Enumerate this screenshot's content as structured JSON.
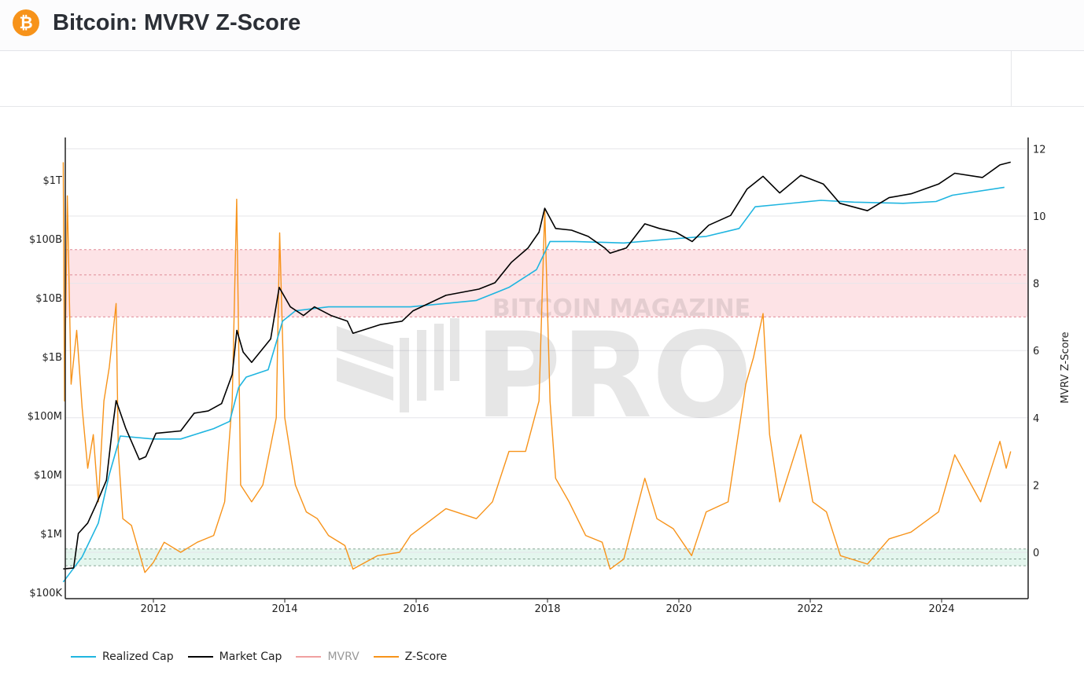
{
  "header": {
    "title": "Bitcoin: MVRV Z-Score",
    "icon": "bitcoin-icon",
    "icon_glyph": "₿"
  },
  "watermark": {
    "line1": "BITCOIN MAGAZINE",
    "line2": "PRO"
  },
  "colors": {
    "realized_cap": "#1fb5e0",
    "market_cap": "#000000",
    "mvrv": "#f0a0a0",
    "z_score": "#f7931a",
    "red_band": "#fde3e6",
    "green_band": "#e4f6ee"
  },
  "chart_data": {
    "type": "line",
    "title": "",
    "xlabel": "",
    "ylabel_left": "",
    "ylabel_right": "MVRV Z-Score",
    "x_ticks": [
      "2012",
      "2014",
      "2016",
      "2018",
      "2020",
      "2022",
      "2024"
    ],
    "x_range": [
      "2010-08-18",
      "2025-05-01"
    ],
    "y_left_scale": "log",
    "y_left_range": [
      100000,
      4000000000000
    ],
    "y_left_ticks": [
      {
        "value": 1000000000000,
        "label": "$1T"
      },
      {
        "value": 100000000000,
        "label": "$100B"
      },
      {
        "value": 10000000000,
        "label": "$10B"
      },
      {
        "value": 1000000000,
        "label": "$1B"
      },
      {
        "value": 100000000,
        "label": "$100M"
      },
      {
        "value": 10000000,
        "label": "$10M"
      },
      {
        "value": 1000000,
        "label": "$1M"
      },
      {
        "value": 100000,
        "label": "$100K"
      }
    ],
    "y_right_range": [
      -1.4,
      12.3
    ],
    "y_right_ticks": [
      0,
      2,
      4,
      6,
      8,
      10,
      12
    ],
    "bands": [
      {
        "zone": "red",
        "from": 7,
        "to": 9,
        "mid": 8.25
      },
      {
        "zone": "green",
        "from": -0.4,
        "to": 0.1,
        "mid": -0.2
      }
    ],
    "grid": true,
    "legend_placement": "bottom-left",
    "series": [
      {
        "name": "Realized Cap",
        "axis": "left",
        "visible": true,
        "points": [
          [
            "2010-08-18",
            150000
          ],
          [
            "2010-12-01",
            400000
          ],
          [
            "2011-03-01",
            1500000
          ],
          [
            "2011-05-01",
            10000000
          ],
          [
            "2011-07-01",
            45000000
          ],
          [
            "2012-01-01",
            40000000
          ],
          [
            "2012-06-01",
            40000000
          ],
          [
            "2012-12-01",
            60000000
          ],
          [
            "2013-03-01",
            80000000
          ],
          [
            "2013-04-20",
            300000000
          ],
          [
            "2013-06-01",
            450000000
          ],
          [
            "2013-10-01",
            600000000
          ],
          [
            "2013-12-20",
            4000000000
          ],
          [
            "2014-03-01",
            6000000000
          ],
          [
            "2014-09-01",
            7000000000
          ],
          [
            "2015-03-01",
            7000000000
          ],
          [
            "2015-12-01",
            7000000000
          ],
          [
            "2016-12-01",
            9000000000
          ],
          [
            "2017-06-01",
            15000000000
          ],
          [
            "2017-11-01",
            30000000000
          ],
          [
            "2018-01-15",
            90000000000
          ],
          [
            "2018-06-01",
            90000000000
          ],
          [
            "2019-03-01",
            85000000000
          ],
          [
            "2019-12-01",
            100000000000
          ],
          [
            "2020-06-01",
            110000000000
          ],
          [
            "2020-12-01",
            150000000000
          ],
          [
            "2021-03-01",
            350000000000
          ],
          [
            "2021-07-01",
            380000000000
          ],
          [
            "2022-03-01",
            450000000000
          ],
          [
            "2022-09-01",
            420000000000
          ],
          [
            "2023-06-01",
            400000000000
          ],
          [
            "2023-12-01",
            430000000000
          ],
          [
            "2024-03-01",
            550000000000
          ],
          [
            "2024-12-15",
            750000000000
          ]
        ]
      },
      {
        "name": "Market Cap",
        "axis": "left",
        "visible": true,
        "points": [
          [
            "2010-08-18",
            250000
          ],
          [
            "2010-10-15",
            260000
          ],
          [
            "2010-11-10",
            1000000
          ],
          [
            "2011-01-01",
            1500000
          ],
          [
            "2011-02-15",
            3000000
          ],
          [
            "2011-04-15",
            8000000
          ],
          [
            "2011-05-15",
            50000000
          ],
          [
            "2011-06-08",
            180000000
          ],
          [
            "2011-08-01",
            60000000
          ],
          [
            "2011-10-15",
            18000000
          ],
          [
            "2011-11-20",
            20000000
          ],
          [
            "2012-01-15",
            50000000
          ],
          [
            "2012-06-01",
            55000000
          ],
          [
            "2012-08-15",
            110000000
          ],
          [
            "2012-11-01",
            120000000
          ],
          [
            "2013-01-15",
            160000000
          ],
          [
            "2013-03-15",
            500000000
          ],
          [
            "2013-04-10",
            2800000000
          ],
          [
            "2013-05-15",
            1200000000
          ],
          [
            "2013-07-01",
            800000000
          ],
          [
            "2013-10-15",
            2000000000
          ],
          [
            "2013-12-01",
            15000000000
          ],
          [
            "2014-02-01",
            7000000000
          ],
          [
            "2014-04-15",
            5000000000
          ],
          [
            "2014-06-15",
            7000000000
          ],
          [
            "2014-09-15",
            5000000000
          ],
          [
            "2014-12-15",
            4000000000
          ],
          [
            "2015-01-15",
            2500000000
          ],
          [
            "2015-06-15",
            3500000000
          ],
          [
            "2015-10-15",
            4000000000
          ],
          [
            "2015-12-15",
            6000000000
          ],
          [
            "2016-06-15",
            11000000000
          ],
          [
            "2016-12-15",
            14000000000
          ],
          [
            "2017-03-15",
            18000000000
          ],
          [
            "2017-06-15",
            40000000000
          ],
          [
            "2017-09-15",
            70000000000
          ],
          [
            "2017-11-15",
            130000000000
          ],
          [
            "2017-12-17",
            330000000000
          ],
          [
            "2018-02-15",
            150000000000
          ],
          [
            "2018-05-15",
            140000000000
          ],
          [
            "2018-08-15",
            110000000000
          ],
          [
            "2018-11-15",
            70000000000
          ],
          [
            "2018-12-15",
            57000000000
          ],
          [
            "2019-03-15",
            70000000000
          ],
          [
            "2019-06-26",
            180000000000
          ],
          [
            "2019-09-15",
            150000000000
          ],
          [
            "2019-12-15",
            130000000000
          ],
          [
            "2020-03-15",
            90000000000
          ],
          [
            "2020-06-15",
            170000000000
          ],
          [
            "2020-10-15",
            250000000000
          ],
          [
            "2021-01-15",
            700000000000
          ],
          [
            "2021-04-14",
            1150000000000
          ],
          [
            "2021-07-15",
            600000000000
          ],
          [
            "2021-11-10",
            1200000000000
          ],
          [
            "2022-03-15",
            850000000000
          ],
          [
            "2022-06-15",
            400000000000
          ],
          [
            "2022-11-15",
            300000000000
          ],
          [
            "2023-03-15",
            500000000000
          ],
          [
            "2023-07-15",
            580000000000
          ],
          [
            "2023-12-15",
            850000000000
          ],
          [
            "2024-03-14",
            1300000000000
          ],
          [
            "2024-08-15",
            1100000000000
          ],
          [
            "2024-11-20",
            1800000000000
          ],
          [
            "2025-01-20",
            2000000000000
          ]
        ]
      },
      {
        "name": "MVRV",
        "axis": "right",
        "visible": false,
        "points": []
      },
      {
        "name": "Z-Score",
        "axis": "right",
        "visible": true,
        "points": [
          [
            "2010-08-18",
            11.6
          ],
          [
            "2010-08-25",
            4.5
          ],
          [
            "2010-09-10",
            10.6
          ],
          [
            "2010-10-01",
            5
          ],
          [
            "2010-11-01",
            6.6
          ],
          [
            "2010-12-01",
            4.3
          ],
          [
            "2011-01-01",
            2.5
          ],
          [
            "2011-02-01",
            3.5
          ],
          [
            "2011-03-01",
            1.5
          ],
          [
            "2011-04-01",
            4.5
          ],
          [
            "2011-05-01",
            5.5
          ],
          [
            "2011-06-08",
            7.4
          ],
          [
            "2011-06-20",
            3
          ],
          [
            "2011-07-15",
            1.0
          ],
          [
            "2011-09-01",
            0.8
          ],
          [
            "2011-11-15",
            -0.6
          ],
          [
            "2012-01-01",
            -0.3
          ],
          [
            "2012-03-01",
            0.3
          ],
          [
            "2012-06-01",
            0
          ],
          [
            "2012-09-01",
            0.3
          ],
          [
            "2012-12-01",
            0.5
          ],
          [
            "2013-02-01",
            1.5
          ],
          [
            "2013-03-15",
            4.5
          ],
          [
            "2013-04-09",
            10.5
          ],
          [
            "2013-05-01",
            2
          ],
          [
            "2013-07-01",
            1.5
          ],
          [
            "2013-09-01",
            2
          ],
          [
            "2013-11-15",
            4
          ],
          [
            "2013-12-04",
            9.5
          ],
          [
            "2014-01-01",
            4
          ],
          [
            "2014-03-01",
            2
          ],
          [
            "2014-05-01",
            1.2
          ],
          [
            "2014-07-01",
            1.0
          ],
          [
            "2014-09-01",
            0.5
          ],
          [
            "2014-12-01",
            0.2
          ],
          [
            "2015-01-15",
            -0.5
          ],
          [
            "2015-06-01",
            -0.1
          ],
          [
            "2015-10-01",
            0
          ],
          [
            "2015-12-01",
            0.5
          ],
          [
            "2016-06-15",
            1.3
          ],
          [
            "2016-12-01",
            1.0
          ],
          [
            "2017-03-01",
            1.5
          ],
          [
            "2017-06-01",
            3
          ],
          [
            "2017-09-01",
            3
          ],
          [
            "2017-11-15",
            4.5
          ],
          [
            "2017-12-17",
            10.2
          ],
          [
            "2018-01-15",
            4.5
          ],
          [
            "2018-02-15",
            2.2
          ],
          [
            "2018-05-01",
            1.5
          ],
          [
            "2018-08-01",
            0.5
          ],
          [
            "2018-11-01",
            0.3
          ],
          [
            "2018-12-15",
            -0.5
          ],
          [
            "2019-03-01",
            -0.2
          ],
          [
            "2019-06-26",
            2.2
          ],
          [
            "2019-09-01",
            1
          ],
          [
            "2019-12-01",
            0.7
          ],
          [
            "2020-03-12",
            -0.1
          ],
          [
            "2020-06-01",
            1.2
          ],
          [
            "2020-10-01",
            1.5
          ],
          [
            "2021-01-08",
            5
          ],
          [
            "2021-02-20",
            5.8
          ],
          [
            "2021-04-14",
            7.1
          ],
          [
            "2021-05-20",
            3.5
          ],
          [
            "2021-07-15",
            1.5
          ],
          [
            "2021-11-10",
            3.5
          ],
          [
            "2022-01-15",
            1.5
          ],
          [
            "2022-04-01",
            1.2
          ],
          [
            "2022-06-18",
            -0.1
          ],
          [
            "2022-11-15",
            -0.35
          ],
          [
            "2023-03-15",
            0.4
          ],
          [
            "2023-07-15",
            0.6
          ],
          [
            "2023-12-15",
            1.2
          ],
          [
            "2024-03-14",
            2.9
          ],
          [
            "2024-08-05",
            1.5
          ],
          [
            "2024-11-20",
            3.3
          ],
          [
            "2024-12-25",
            2.5
          ],
          [
            "2025-01-20",
            3.0
          ]
        ]
      }
    ]
  },
  "legend": [
    {
      "label": "Realized Cap",
      "color": "#1fb5e0",
      "visible": true
    },
    {
      "label": "Market Cap",
      "color": "#000000",
      "visible": true
    },
    {
      "label": "MVRV",
      "color": "#f0a0a0",
      "visible": false
    },
    {
      "label": "Z-Score",
      "color": "#f7931a",
      "visible": true
    }
  ]
}
